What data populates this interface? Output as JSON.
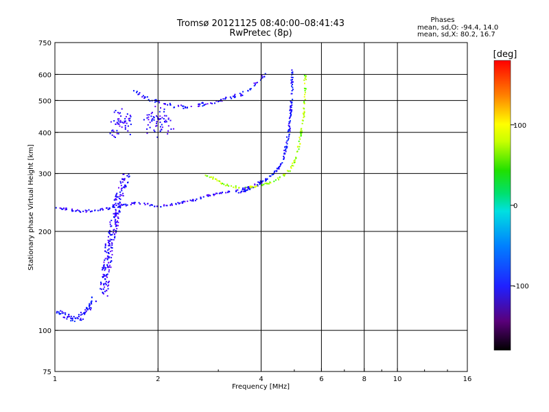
{
  "chart_data": {
    "type": "scatter",
    "title": "Tromsø 20121125 08:40:00–08:41:43",
    "subtitle": "RwPretec (8p)",
    "xlabel": "Frequency [MHz]",
    "ylabel": "Stationary phase Virtual Height [km]",
    "x_scale": "log",
    "y_scale": "log",
    "xlim": [
      1,
      16
    ],
    "ylim": [
      75,
      750
    ],
    "x_ticks": [
      {
        "value": 1,
        "label": "1"
      },
      {
        "value": 2,
        "label": "2"
      },
      {
        "value": 4,
        "label": "4"
      },
      {
        "value": 6,
        "label": "6"
      },
      {
        "value": 8,
        "label": "8"
      },
      {
        "value": 10,
        "label": "10"
      },
      {
        "value": 16,
        "label": "16"
      }
    ],
    "y_ticks": [
      {
        "value": 75,
        "label": "75"
      },
      {
        "value": 100,
        "label": "100"
      },
      {
        "value": 200,
        "label": "200"
      },
      {
        "value": 300,
        "label": "300"
      },
      {
        "value": 400,
        "label": "400"
      },
      {
        "value": 500,
        "label": "500"
      },
      {
        "value": 600,
        "label": "600"
      },
      {
        "value": 750,
        "label": "750"
      }
    ],
    "grid_x": [
      2,
      4,
      6,
      8,
      10
    ],
    "grid_y": [
      100,
      200,
      300,
      400,
      500,
      600
    ],
    "legend": {
      "heading": "Phases",
      "line1": "mean, sd,O: -94.4, 14.0",
      "line2": "mean, sd,X:  80.2, 16.7"
    },
    "colorbar": {
      "label": "[deg]",
      "range": [
        -180,
        180
      ],
      "ticks": [
        {
          "value": 100,
          "label": "100"
        },
        {
          "value": 0,
          "label": "0"
        },
        {
          "value": -100,
          "label": "-100"
        }
      ]
    },
    "traces": [
      {
        "x": [
          1.0,
          1.05,
          1.1,
          1.15,
          1.2,
          1.25,
          1.3,
          1.4,
          1.5,
          1.6,
          1.7,
          1.8,
          1.9,
          2.0,
          2.2,
          2.4,
          2.6,
          2.8,
          3.0,
          3.2,
          3.4,
          3.6,
          3.8,
          4.0
        ],
        "y": [
          238,
          236,
          234,
          232,
          231,
          232,
          233,
          235,
          238,
          242,
          245,
          244,
          241,
          240,
          243,
          247,
          252,
          258,
          262,
          265,
          268,
          272,
          278,
          285
        ],
        "phase": -110,
        "spread": 3,
        "density": 3
      },
      {
        "x": [
          1.7,
          1.8,
          1.9,
          2.0,
          2.1,
          2.2,
          2.3,
          2.5,
          2.7,
          2.9,
          3.1,
          3.3,
          3.5,
          3.7,
          3.9,
          4.1
        ],
        "y": [
          535,
          520,
          505,
          497,
          492,
          485,
          480,
          482,
          490,
          498,
          505,
          515,
          525,
          545,
          570,
          605
        ],
        "phase": -105,
        "spread": 5,
        "density": 3
      },
      {
        "x": [
          3.4,
          3.6,
          3.8,
          4.0,
          4.2,
          4.4,
          4.6,
          4.7,
          4.8,
          4.85,
          4.9,
          4.9
        ],
        "y": [
          262,
          268,
          275,
          283,
          293,
          305,
          330,
          360,
          400,
          460,
          540,
          620
        ],
        "phase": -100,
        "spread": 3,
        "density": 4
      },
      {
        "x": [
          2.7,
          2.9,
          3.1,
          3.3,
          3.5,
          3.8,
          4.1,
          4.4,
          4.7,
          4.9,
          5.1,
          5.2,
          5.3,
          5.35,
          5.35
        ],
        "y": [
          300,
          290,
          280,
          275,
          272,
          275,
          280,
          287,
          300,
          315,
          350,
          400,
          450,
          520,
          600
        ],
        "phase": 80,
        "spread": 3,
        "density": 3
      },
      {
        "x": [
          1.0,
          1.05,
          1.1,
          1.15,
          1.2,
          1.25,
          1.3
        ],
        "y": [
          115,
          112,
          110,
          108,
          112,
          118,
          125
        ],
        "phase": -100,
        "spread": 8,
        "density": 6
      },
      {
        "x": [
          1.38,
          1.4,
          1.42,
          1.45,
          1.48,
          1.5,
          1.52,
          1.55,
          1.58,
          1.6,
          1.62
        ],
        "y": [
          130,
          150,
          170,
          190,
          210,
          230,
          250,
          265,
          280,
          290,
          300
        ],
        "phase": -110,
        "spread": 12,
        "density": 8
      },
      {
        "x": [
          1.5,
          1.52,
          1.55,
          1.58,
          1.6
        ],
        "y": [
          400,
          420,
          440,
          460,
          410
        ],
        "phase": -110,
        "spread": 20,
        "density": 6
      },
      {
        "x": [
          1.9,
          1.95,
          2.0,
          2.05,
          2.1
        ],
        "y": [
          420,
          440,
          460,
          440,
          410
        ],
        "phase": -110,
        "spread": 25,
        "density": 8
      }
    ]
  }
}
